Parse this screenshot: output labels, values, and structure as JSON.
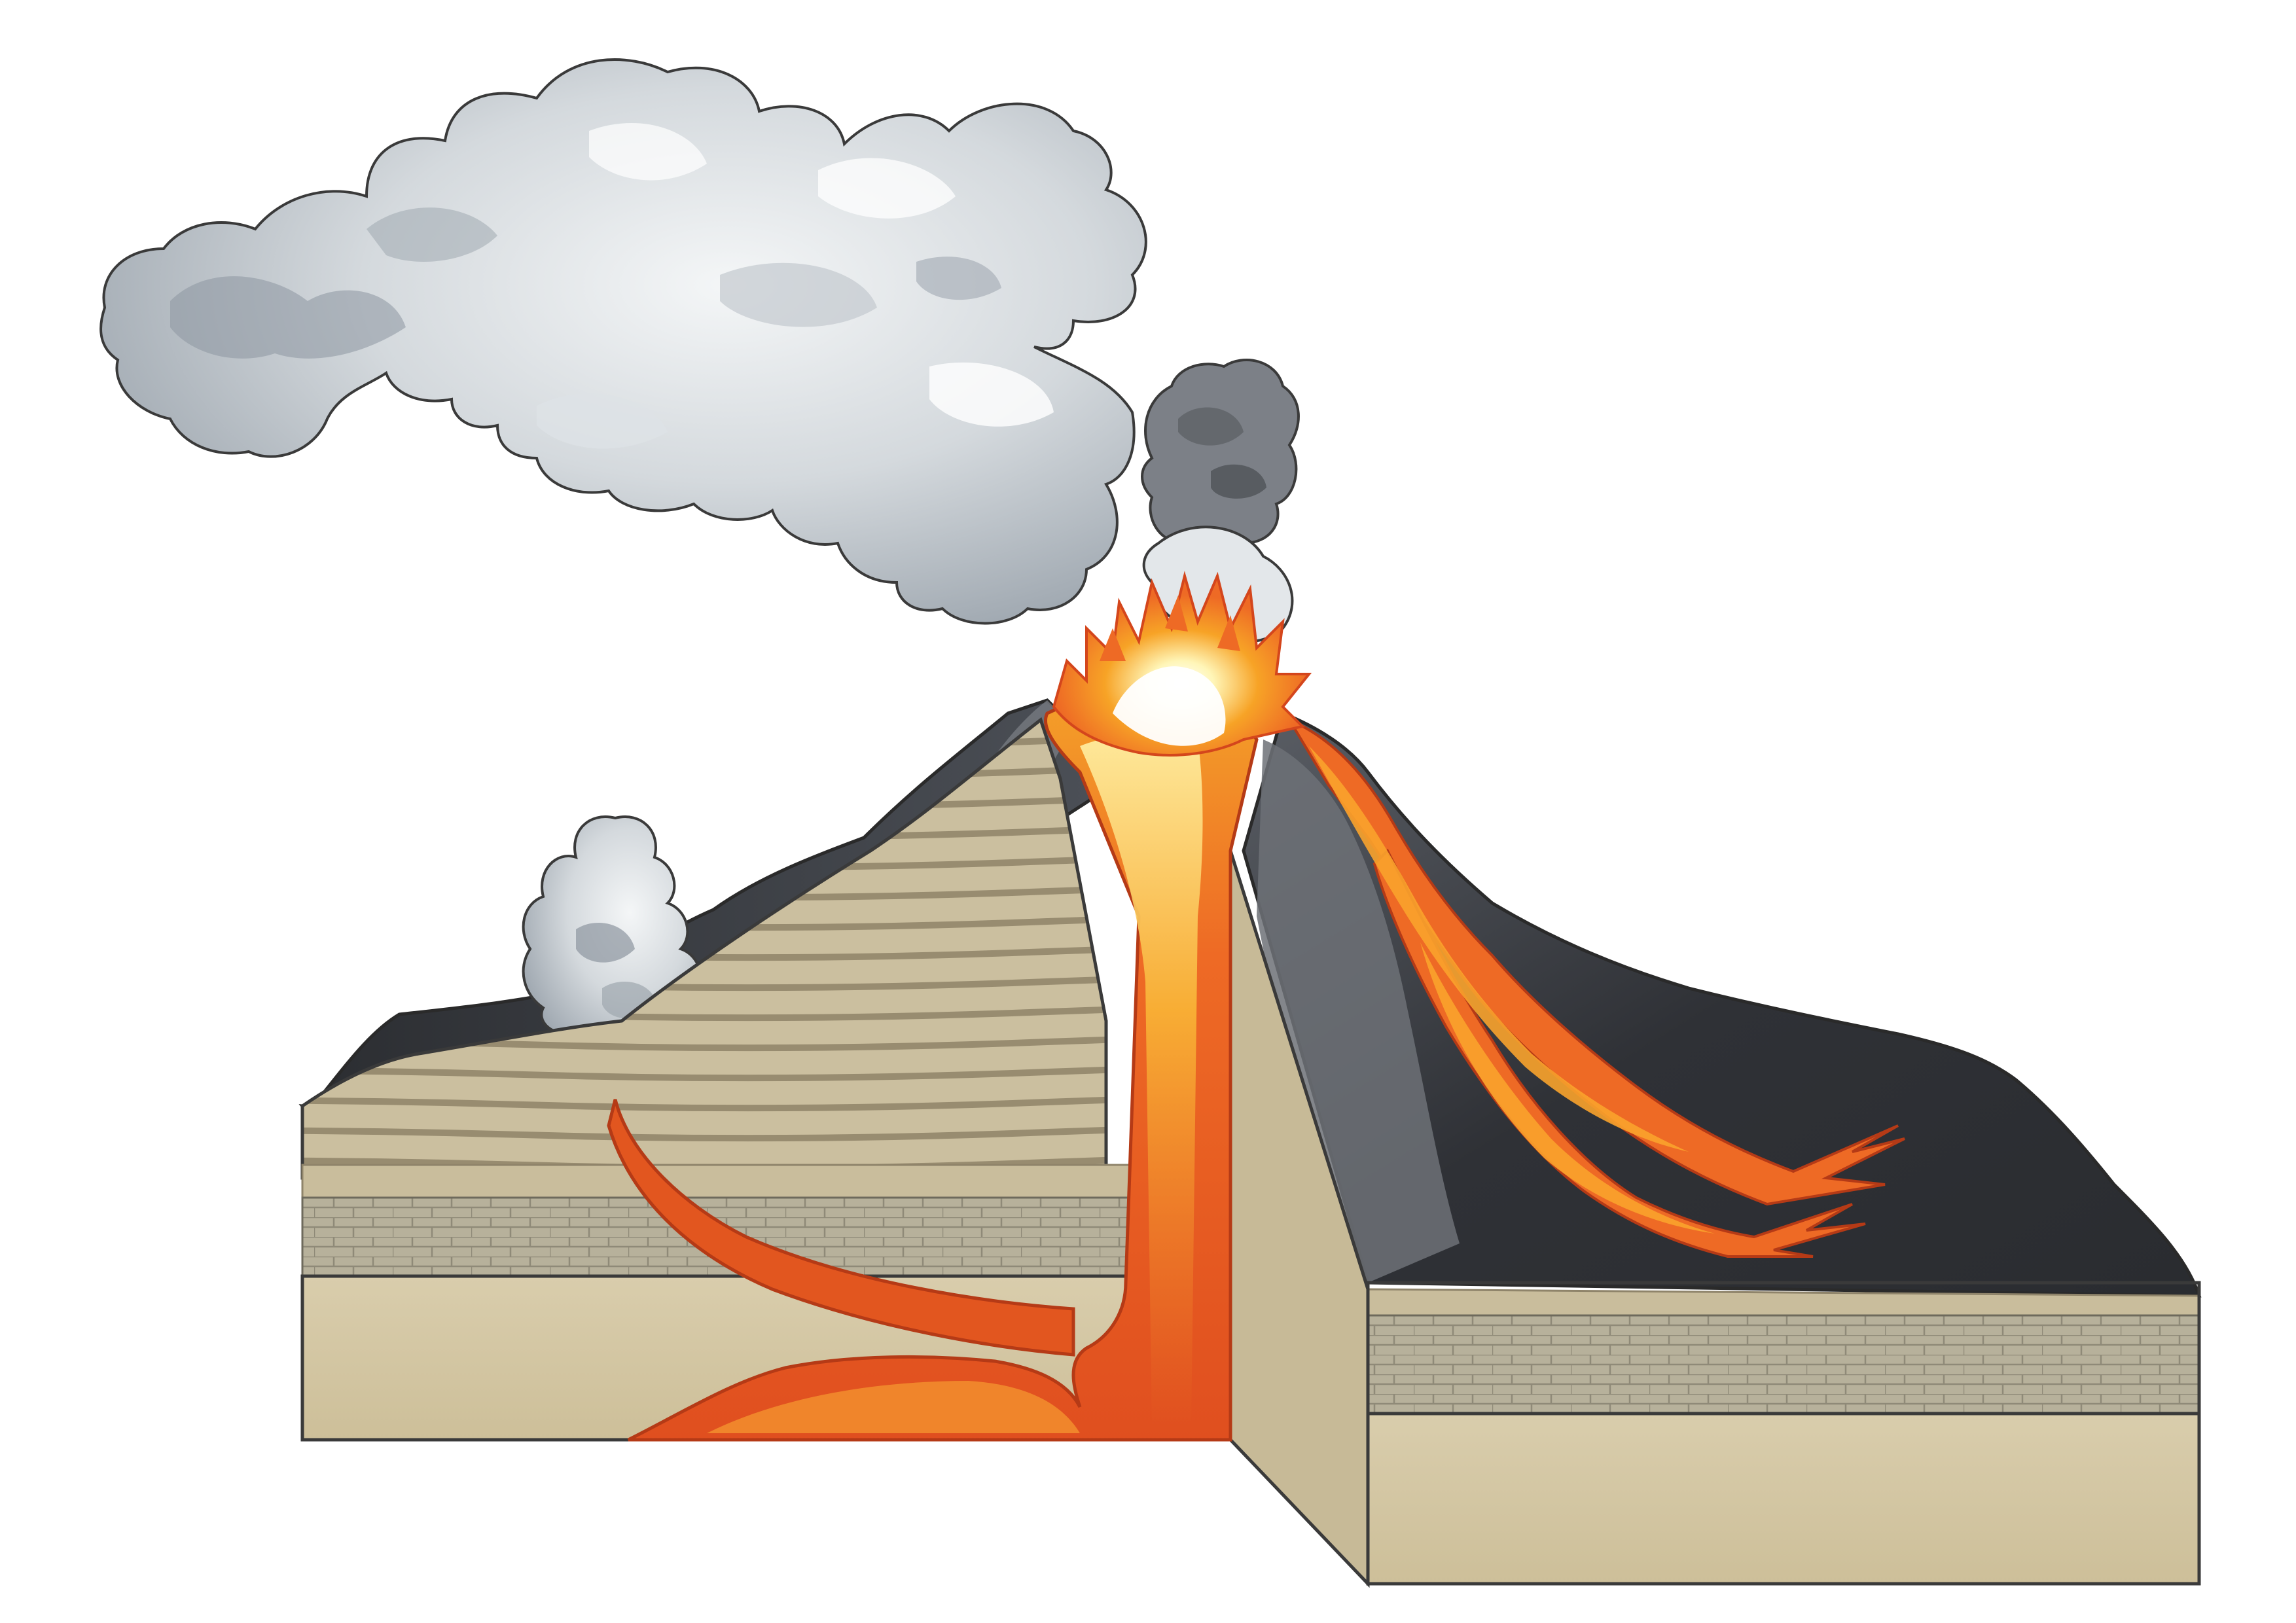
{
  "diagram": {
    "subject": "volcano-cross-section",
    "colors": {
      "background": "#ffffff",
      "outline": "#3a3a3a",
      "cone_dark": "#2f3136",
      "cone_mid": "#4a4d54",
      "cone_light": "#6f7379",
      "strata_light": "#cbbf9f",
      "strata_dark": "#9b8f73",
      "brick": "#b3ad97",
      "brick_line": "#8f8a78",
      "bedrock": "#d6c9a6",
      "magma_dark": "#d8401c",
      "magma_mid": "#ee6a25",
      "magma_light": "#f7a326",
      "eruption_core": "#fff6b8",
      "smoke_light": "#eceff1",
      "smoke_mid": "#bcc3ca",
      "smoke_dark": "#8a939c",
      "ash_dark": "#6b6d70"
    }
  }
}
